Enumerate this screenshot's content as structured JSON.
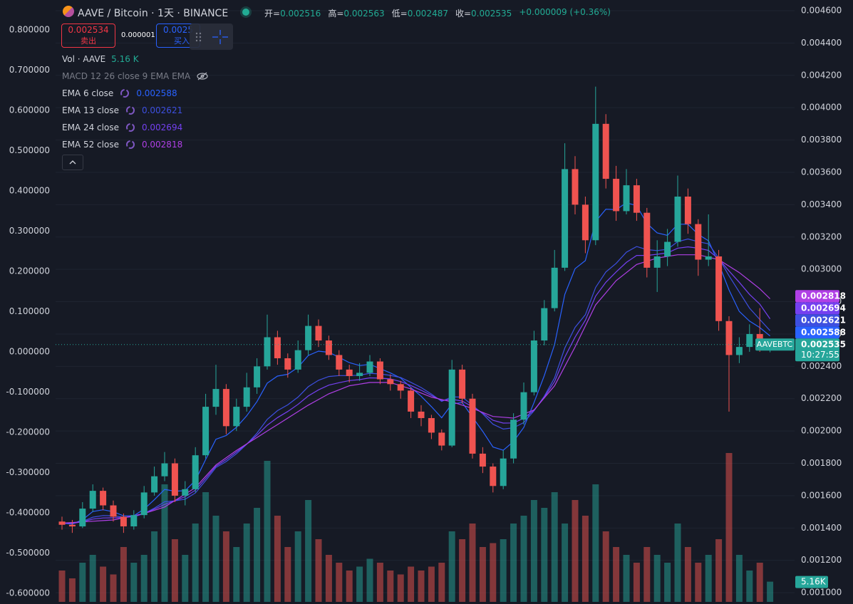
{
  "header": {
    "title": "AAVE / Bitcoin · 1天 · BINANCE",
    "open": "开=",
    "high": "高=",
    "low": "低=",
    "close": "收=",
    "change": "+0.000009 (+0.36%)"
  },
  "trade": {
    "sell_price": 0.002534,
    "sell": "卖出",
    "spread": 1e-06,
    "buy_price": 0.0025,
    "buy": "买入"
  },
  "legend": {
    "macd": "MACD 12 26 close 9 EMA EMA"
  },
  "chart_data": {
    "type": "candlestick",
    "up_color": "#26a69a",
    "down_color": "#ef5350",
    "grid": true,
    "candles": [
      [
        0.00144,
        0.00147,
        0.00139,
        0.00142
      ],
      [
        0.00142,
        0.00145,
        0.00137,
        0.00141
      ],
      [
        0.00141,
        0.00156,
        0.0014,
        0.00152
      ],
      [
        0.00152,
        0.00167,
        0.0015,
        0.00163
      ],
      [
        0.00163,
        0.00165,
        0.00151,
        0.00154
      ],
      [
        0.00154,
        0.00157,
        0.00144,
        0.00147
      ],
      [
        0.00147,
        0.00149,
        0.00137,
        0.00141
      ],
      [
        0.00141,
        0.00151,
        0.00139,
        0.00148
      ],
      [
        0.00148,
        0.00166,
        0.00146,
        0.00162
      ],
      [
        0.00162,
        0.00178,
        0.0016,
        0.00172
      ],
      [
        0.00172,
        0.00187,
        0.00169,
        0.0018
      ],
      [
        0.0018,
        0.00183,
        0.00156,
        0.0016
      ],
      [
        0.0016,
        0.00169,
        0.00154,
        0.00164
      ],
      [
        0.00164,
        0.0019,
        0.00162,
        0.00185
      ],
      [
        0.00185,
        0.00223,
        0.00183,
        0.00215
      ],
      [
        0.00215,
        0.00241,
        0.0021,
        0.00226
      ],
      [
        0.00226,
        0.00229,
        0.00198,
        0.00203
      ],
      [
        0.00203,
        0.0022,
        0.002,
        0.00215
      ],
      [
        0.00215,
        0.00236,
        0.00212,
        0.00227
      ],
      [
        0.00227,
        0.00245,
        0.00223,
        0.0024
      ],
      [
        0.0024,
        0.00272,
        0.00238,
        0.00258
      ],
      [
        0.00258,
        0.00262,
        0.00241,
        0.00245
      ],
      [
        0.00245,
        0.00248,
        0.00233,
        0.00238
      ],
      [
        0.00238,
        0.00256,
        0.00236,
        0.0025
      ],
      [
        0.0025,
        0.00272,
        0.00247,
        0.00265
      ],
      [
        0.00265,
        0.00269,
        0.00252,
        0.00256
      ],
      [
        0.00256,
        0.00259,
        0.00244,
        0.00247
      ],
      [
        0.00247,
        0.0025,
        0.00234,
        0.00238
      ],
      [
        0.00238,
        0.00241,
        0.0023,
        0.00234
      ],
      [
        0.00234,
        0.00242,
        0.00231,
        0.00236
      ],
      [
        0.00236,
        0.00247,
        0.00234,
        0.00243
      ],
      [
        0.00243,
        0.00245,
        0.00229,
        0.00232
      ],
      [
        0.00232,
        0.00235,
        0.00225,
        0.00229
      ],
      [
        0.00229,
        0.00231,
        0.0022,
        0.00225
      ],
      [
        0.00225,
        0.00227,
        0.00208,
        0.00212
      ],
      [
        0.00212,
        0.00216,
        0.00203,
        0.00208
      ],
      [
        0.00208,
        0.0021,
        0.00195,
        0.00199
      ],
      [
        0.00199,
        0.00201,
        0.00188,
        0.00191
      ],
      [
        0.00191,
        0.00244,
        0.0019,
        0.00238
      ],
      [
        0.00238,
        0.00241,
        0.00217,
        0.0022
      ],
      [
        0.0022,
        0.00223,
        0.00183,
        0.00186
      ],
      [
        0.00186,
        0.0019,
        0.00174,
        0.00178
      ],
      [
        0.00178,
        0.0018,
        0.00162,
        0.00166
      ],
      [
        0.00166,
        0.00188,
        0.00164,
        0.00183
      ],
      [
        0.00183,
        0.00211,
        0.0018,
        0.00207
      ],
      [
        0.00207,
        0.0023,
        0.00204,
        0.00224
      ],
      [
        0.00224,
        0.00262,
        0.00222,
        0.00256
      ],
      [
        0.00256,
        0.00281,
        0.00253,
        0.00276
      ],
      [
        0.00276,
        0.00312,
        0.00274,
        0.00301
      ],
      [
        0.00301,
        0.00378,
        0.00299,
        0.00362
      ],
      [
        0.00362,
        0.0037,
        0.00334,
        0.0034
      ],
      [
        0.0034,
        0.00345,
        0.0031,
        0.00318
      ],
      [
        0.00318,
        0.00413,
        0.00315,
        0.0039
      ],
      [
        0.0039,
        0.00396,
        0.0035,
        0.00356
      ],
      [
        0.00356,
        0.00364,
        0.0033,
        0.00336
      ],
      [
        0.00336,
        0.00362,
        0.00334,
        0.00352
      ],
      [
        0.00352,
        0.00356,
        0.0033,
        0.00335
      ],
      [
        0.00335,
        0.00338,
        0.00295,
        0.00301
      ],
      [
        0.00301,
        0.00318,
        0.00286,
        0.00308
      ],
      [
        0.00308,
        0.00325,
        0.00302,
        0.00317
      ],
      [
        0.00317,
        0.00358,
        0.00314,
        0.00345
      ],
      [
        0.00345,
        0.0035,
        0.00322,
        0.00328
      ],
      [
        0.00328,
        0.00331,
        0.00296,
        0.00306
      ],
      [
        0.00306,
        0.00334,
        0.00302,
        0.00308
      ],
      [
        0.00308,
        0.00312,
        0.00262,
        0.00268
      ],
      [
        0.00268,
        0.00271,
        0.00212,
        0.00247
      ],
      [
        0.00247,
        0.00258,
        0.00242,
        0.00252
      ],
      [
        0.00252,
        0.00266,
        0.00249,
        0.0026
      ],
      [
        0.0026,
        0.00276,
        0.00249,
        0.002516
      ],
      [
        0.002516,
        0.002563,
        0.002487,
        0.002535
      ]
    ],
    "volume": {
      "name": "Vol · AAVE",
      "value_label": "5.16 K",
      "axis_label": "5.16K",
      "values": [
        8,
        6,
        10,
        12,
        9,
        7,
        14,
        10,
        12,
        18,
        30,
        16,
        12,
        20,
        28,
        22,
        18,
        14,
        20,
        24,
        36,
        22,
        14,
        18,
        26,
        16,
        12,
        10,
        8,
        9,
        11,
        10,
        8,
        7,
        9,
        8,
        9,
        10,
        18,
        16,
        20,
        14,
        15,
        16,
        20,
        22,
        26,
        24,
        28,
        20,
        26,
        22,
        30,
        18,
        14,
        12,
        10,
        14,
        12,
        10,
        20,
        14,
        10,
        12,
        16,
        38,
        12,
        8,
        10,
        5.16
      ]
    },
    "series": [
      {
        "name": "EMA 6 close",
        "color": "#2962ff",
        "values": [
          0.00143,
          0.001424,
          0.001451,
          0.001502,
          0.001513,
          0.001501,
          0.001475,
          0.001476,
          0.001517,
          0.001575,
          0.001639,
          0.001628,
          0.001631,
          0.001694,
          0.001824,
          0.001949,
          0.001972,
          0.002023,
          0.002094,
          0.002182,
          0.002296,
          0.00234,
          0.002351,
          0.002394,
          0.002467,
          0.002494,
          0.002487,
          0.002456,
          0.002423,
          0.002405,
          0.002412,
          0.002386,
          0.002359,
          0.002328,
          0.002269,
          0.002215,
          0.002151,
          0.002082,
          0.002167,
          0.002176,
          0.002086,
          0.001998,
          0.001901,
          0.001881,
          0.001935,
          0.002022,
          0.002176,
          0.002343,
          0.002534,
          0.002845,
          0.003004,
          0.003054,
          0.003296,
          0.003372,
          0.003369,
          0.003412,
          0.003394,
          0.003284,
          0.003226,
          0.00321,
          0.003279,
          0.003279,
          0.003216,
          0.003177,
          0.003035,
          0.002873,
          0.00274,
          0.00268,
          0.00264,
          0.002588
        ]
      },
      {
        "name": "EMA 13 close",
        "color": "#3d4fe0",
        "values": [
          0.00143,
          0.001427,
          0.00144,
          0.001467,
          0.001477,
          0.001476,
          0.001467,
          0.001469,
          0.00149,
          0.001523,
          0.001562,
          0.001568,
          0.001578,
          0.001617,
          0.001693,
          0.001774,
          0.001811,
          0.001859,
          0.001918,
          0.001987,
          0.002072,
          0.002126,
          0.002162,
          0.00221,
          0.002274,
          0.002314,
          0.002337,
          0.002343,
          0.002343,
          0.002345,
          0.002357,
          0.002353,
          0.002344,
          0.002331,
          0.002301,
          0.002269,
          0.002229,
          0.002183,
          0.002211,
          0.00221,
          0.00216,
          0.002106,
          0.002042,
          0.002012,
          0.00202,
          0.002052,
          0.002125,
          0.002215,
          0.002329,
          0.002514,
          0.002641,
          0.002719,
          0.002888,
          0.002984,
          0.003037,
          0.003106,
          0.003141,
          0.003122,
          0.003116,
          0.003124,
          0.003171,
          0.003188,
          0.003171,
          0.003158,
          0.00307,
          0.00296,
          0.00286,
          0.00276,
          0.00269,
          0.002621
        ]
      },
      {
        "name": "EMA 24 close",
        "color": "#7440f0",
        "values": [
          0.00143,
          0.00143,
          0.001439,
          0.001455,
          0.001462,
          0.001463,
          0.001465,
          0.001473,
          0.00149,
          0.001517,
          0.001546,
          0.001569,
          0.001594,
          0.001634,
          0.001707,
          0.001782,
          0.001823,
          0.00187,
          0.001919,
          0.001974,
          0.002036,
          0.002083,
          0.002121,
          0.002165,
          0.002217,
          0.002255,
          0.002284,
          0.002299,
          0.002312,
          0.002318,
          0.002329,
          0.002327,
          0.002322,
          0.002306,
          0.002281,
          0.002252,
          0.00222,
          0.002189,
          0.002196,
          0.002185,
          0.00215,
          0.002111,
          0.002066,
          0.002049,
          0.00205,
          0.002079,
          0.002128,
          0.00221,
          0.002305,
          0.002457,
          0.002581,
          0.002685,
          0.002834,
          0.00292,
          0.002984,
          0.003043,
          0.003086,
          0.003086,
          0.003093,
          0.003102,
          0.003131,
          0.003139,
          0.003131,
          0.003117,
          0.003065,
          0.00299,
          0.00292,
          0.002845,
          0.002785,
          0.002694
        ]
      },
      {
        "name": "EMA 52 close",
        "color": "#b03fe6",
        "values": [
          0.00143,
          0.001434,
          0.001438,
          0.001442,
          0.001446,
          0.00145,
          0.001463,
          0.001476,
          0.00149,
          0.00151,
          0.00153,
          0.00157,
          0.00161,
          0.00165,
          0.00172,
          0.00179,
          0.001835,
          0.00188,
          0.00192,
          0.00196,
          0.002,
          0.00204,
          0.00208,
          0.00212,
          0.00216,
          0.002195,
          0.00223,
          0.002255,
          0.00228,
          0.00229,
          0.0023,
          0.0023,
          0.0023,
          0.00228,
          0.00226,
          0.002235,
          0.00221,
          0.002195,
          0.00218,
          0.00216,
          0.00214,
          0.002115,
          0.00209,
          0.002085,
          0.00208,
          0.002105,
          0.00213,
          0.002205,
          0.00228,
          0.0024,
          0.00252,
          0.00265,
          0.00278,
          0.002855,
          0.00293,
          0.00298,
          0.00303,
          0.00305,
          0.00307,
          0.00308,
          0.00309,
          0.00309,
          0.00309,
          0.003075,
          0.00306,
          0.00302,
          0.00298,
          0.00293,
          0.00288,
          0.002818
        ]
      }
    ],
    "ylim": [
      0.00093,
      0.004666
    ],
    "yticks": [
      {
        "value": 0.0046,
        "label": "0.004600"
      },
      {
        "value": 0.0044,
        "label": "0.004400"
      },
      {
        "value": 0.0042,
        "label": "0.004200"
      },
      {
        "value": 0.004,
        "label": "0.004000"
      },
      {
        "value": 0.0038,
        "label": "0.003800"
      },
      {
        "value": 0.0036,
        "label": "0.003600"
      },
      {
        "value": 0.0034,
        "label": "0.003400"
      },
      {
        "value": 0.0032,
        "label": "0.003200"
      },
      {
        "value": 0.003,
        "label": "0.003000"
      },
      {
        "value": 0.0028,
        "label": "0.002800"
      },
      {
        "value": 0.0026,
        "label": "0.002600"
      },
      {
        "value": 0.0024,
        "label": "0.002400"
      },
      {
        "value": 0.0022,
        "label": "0.002200"
      },
      {
        "value": 0.002,
        "label": "0.002000"
      },
      {
        "value": 0.0018,
        "label": "0.001800"
      },
      {
        "value": 0.0016,
        "label": "0.001600"
      },
      {
        "value": 0.0014,
        "label": "0.001400"
      },
      {
        "value": 0.0012,
        "label": "0.001200"
      },
      {
        "value": 0.001,
        "label": "0.001000"
      }
    ],
    "y2lim": [
      -0.6265,
      0.8743
    ],
    "y2ticks": [
      {
        "value": 0.8,
        "label": "0.800000"
      },
      {
        "value": 0.7,
        "label": "0.700000"
      },
      {
        "value": 0.6,
        "label": "0.600000"
      },
      {
        "value": 0.5,
        "label": "0.500000"
      },
      {
        "value": 0.4,
        "label": "0.400000"
      },
      {
        "value": 0.3,
        "label": "0.300000"
      },
      {
        "value": 0.2,
        "label": "0.200000"
      },
      {
        "value": 0.1,
        "label": "0.100000"
      },
      {
        "value": 0,
        "label": "0.000000"
      },
      {
        "value": -0.1,
        "label": "-0.100000"
      },
      {
        "value": -0.2,
        "label": "-0.200000"
      },
      {
        "value": -0.3,
        "label": "-0.300000"
      },
      {
        "value": -0.4,
        "label": "-0.400000"
      },
      {
        "value": -0.5,
        "label": "-0.500000"
      },
      {
        "value": -0.6,
        "label": "-0.600000"
      }
    ],
    "last_price_tag": "AAVEBTC",
    "countdown": "10:27:55"
  }
}
